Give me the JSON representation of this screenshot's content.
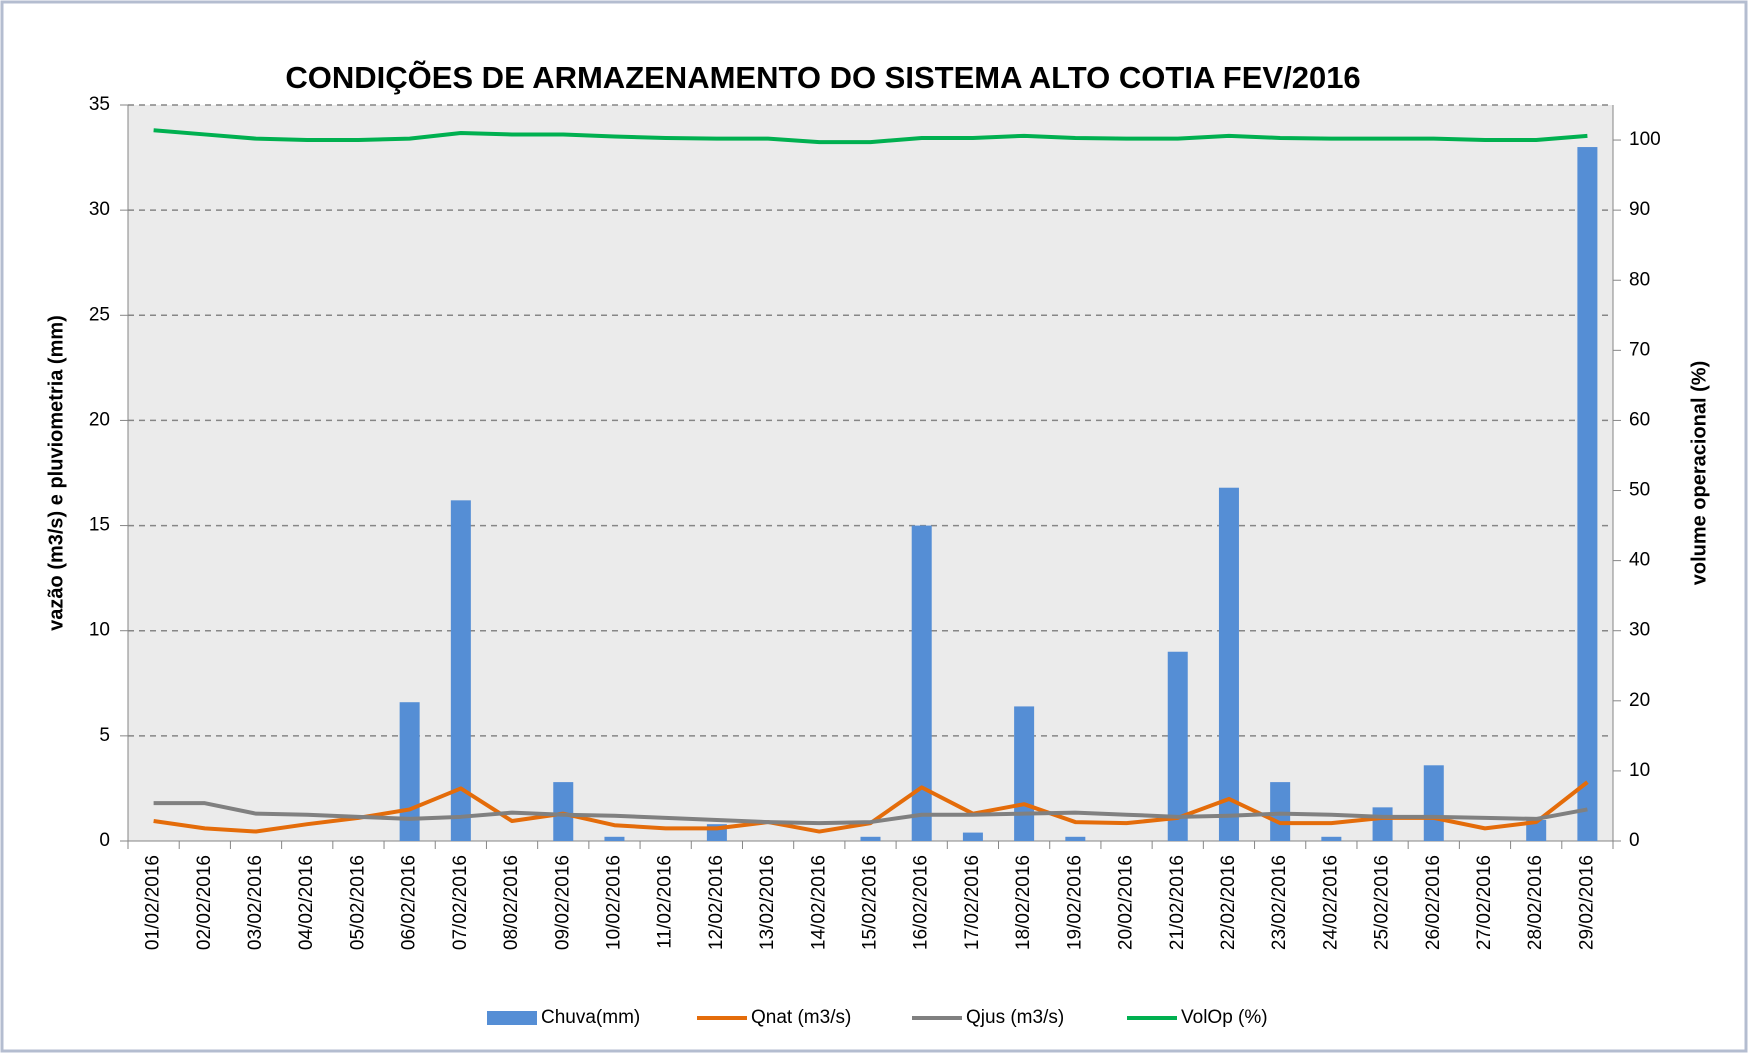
{
  "chart_data": {
    "type": "bar",
    "title": "CONDIÇÕES DE ARMAZENAMENTO DO SISTEMA ALTO COTIA  FEV/2016",
    "ylabel": "vazão (m3/s) e pluviometria (mm)",
    "y2label": "volume operacional (%)",
    "categories": [
      "01/02/2016",
      "02/02/2016",
      "03/02/2016",
      "04/02/2016",
      "05/02/2016",
      "06/02/2016",
      "07/02/2016",
      "08/02/2016",
      "09/02/2016",
      "10/02/2016",
      "11/02/2016",
      "12/02/2016",
      "13/02/2016",
      "14/02/2016",
      "15/02/2016",
      "16/02/2016",
      "17/02/2016",
      "18/02/2016",
      "19/02/2016",
      "20/02/2016",
      "21/02/2016",
      "22/02/2016",
      "23/02/2016",
      "24/02/2016",
      "25/02/2016",
      "26/02/2016",
      "27/02/2016",
      "28/02/2016",
      "29/02/2016"
    ],
    "series": [
      {
        "name": "Chuva(mm)",
        "type": "bar",
        "color": "#558ed5",
        "values": [
          0,
          0,
          0,
          0,
          0,
          6.6,
          16.2,
          0,
          2.8,
          0.2,
          0,
          0.8,
          0,
          0,
          0.2,
          15,
          0.4,
          6.4,
          0.2,
          0,
          9,
          16.8,
          2.8,
          0.2,
          1.6,
          3.6,
          0,
          1.0,
          33
        ]
      },
      {
        "name": "Qnat (m3/s)",
        "type": "line",
        "color": "#e46c0a",
        "values": [
          0.95,
          0.6,
          0.45,
          0.8,
          1.1,
          1.5,
          2.5,
          0.95,
          1.3,
          0.75,
          0.6,
          0.6,
          0.9,
          0.45,
          0.85,
          2.55,
          1.3,
          1.75,
          0.9,
          0.85,
          1.1,
          2.0,
          0.85,
          0.85,
          1.1,
          1.1,
          0.6,
          0.9,
          2.8
        ]
      },
      {
        "name": "Qjus (m3/s)",
        "type": "line",
        "color": "#808080",
        "values": [
          1.8,
          1.8,
          1.3,
          1.25,
          1.15,
          1.05,
          1.15,
          1.35,
          1.25,
          1.2,
          1.1,
          1.0,
          0.9,
          0.85,
          0.9,
          1.25,
          1.25,
          1.3,
          1.35,
          1.25,
          1.15,
          1.2,
          1.3,
          1.25,
          1.15,
          1.15,
          1.1,
          1.05,
          1.5
        ]
      },
      {
        "name": "VolOp (%)",
        "type": "line",
        "color": "#00b050",
        "axis": "y2",
        "values": [
          101.4,
          100.8,
          100.2,
          100,
          100,
          100.2,
          101,
          100.8,
          100.8,
          100.5,
          100.3,
          100.2,
          100.2,
          99.7,
          99.7,
          100.3,
          100.3,
          100.6,
          100.3,
          100.2,
          100.2,
          100.6,
          100.3,
          100.2,
          100.2,
          100.2,
          100,
          100,
          100.6
        ]
      }
    ],
    "ylim": [
      0,
      35
    ],
    "yticks": [
      0,
      5,
      10,
      15,
      20,
      25,
      30,
      35
    ],
    "y2lim": [
      0,
      105
    ],
    "y2ticks": [
      0,
      10,
      20,
      30,
      40,
      50,
      60,
      70,
      80,
      90,
      100
    ],
    "grid": true,
    "legend": "bottom"
  }
}
